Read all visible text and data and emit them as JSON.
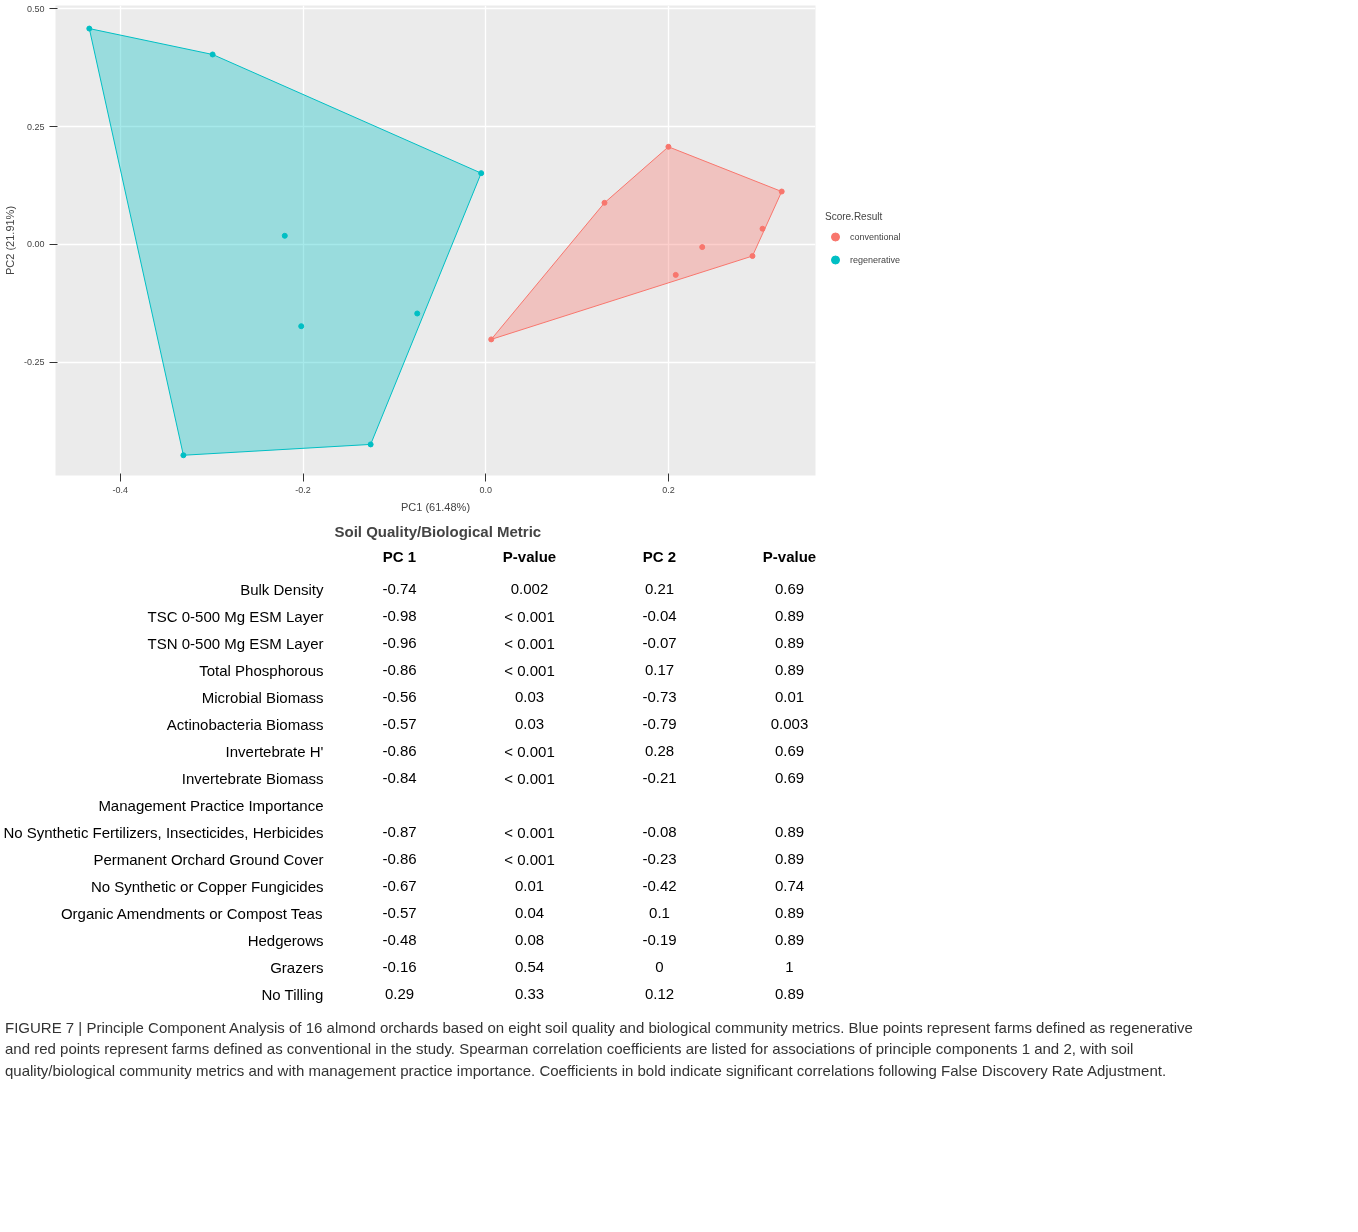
{
  "chart_data": [
    {
      "type": "scatter",
      "xlabel": "PC1 (61.48%)",
      "ylabel": "PC2 (21.91%)",
      "legend_title": "Score.Result",
      "legend": "right",
      "grid": true,
      "marker": "circle",
      "xlim": [
        -0.471,
        0.361
      ],
      "ylim": [
        -0.491,
        0.507
      ],
      "xticks": [
        {
          "value": -0.4,
          "label": "-0.4"
        },
        {
          "value": -0.2,
          "label": "-0.2"
        },
        {
          "value": 0.0,
          "label": "0.0"
        },
        {
          "value": 0.2,
          "label": "0.2"
        }
      ],
      "yticks": [
        {
          "value": -0.25,
          "label": "-0.25"
        },
        {
          "value": 0.0,
          "label": "0.00"
        },
        {
          "value": 0.25,
          "label": "0.25"
        },
        {
          "value": 0.5,
          "label": "0.50"
        }
      ],
      "series": [
        {
          "type": "area",
          "marker": "none",
          "color": "#f8766d",
          "x": [
            0.2,
            0.324,
            0.292,
            0.006,
            0.13
          ],
          "values": [
            0.207,
            0.112,
            -0.025,
            -0.202,
            0.088
          ]
        },
        {
          "type": "area",
          "marker": "none",
          "color": "#00bfc4",
          "x": [
            -0.434,
            -0.299,
            -0.005,
            -0.126,
            -0.331
          ],
          "values": [
            0.458,
            0.403,
            0.151,
            -0.425,
            -0.448
          ]
        },
        {
          "name": "conventional",
          "color": "#f8766d",
          "x": [
            0.2,
            0.324,
            0.303,
            0.292,
            0.237,
            0.208,
            0.13,
            0.006
          ],
          "values": [
            0.207,
            0.112,
            0.033,
            -0.025,
            -0.006,
            -0.065,
            0.088,
            -0.202
          ]
        },
        {
          "name": "regenerative",
          "color": "#00bfc4",
          "x": [
            -0.434,
            -0.299,
            -0.005,
            -0.22,
            -0.202,
            -0.075,
            -0.126,
            -0.331
          ],
          "values": [
            0.458,
            0.403,
            0.151,
            0.018,
            -0.174,
            -0.147,
            -0.425,
            -0.448
          ]
        }
      ]
    },
    {
      "type": "heatmap",
      "title": "Soil Quality/Biological Metric",
      "data_labels": true,
      "categories": [
        "PC 1",
        "P-value",
        "PC 2",
        "P-value"
      ],
      "y_categories": [
        "Bulk Density",
        "TSC 0-500 Mg ESM Layer",
        "TSN 0-500 Mg ESM Layer",
        "Total Phosphorous",
        "Microbial Biomass",
        "Actinobacteria Biomass",
        "Invertebrate H'",
        "Invertebrate Biomass",
        "Management Practice Importance",
        "No Synthetic Fertilizers, Insecticides, Herbicides",
        "Permanent Orchard Ground Cover",
        "No Synthetic or Copper Fungicides",
        "Organic Amendments or Compost Teas",
        "Hedgerows",
        "Grazers",
        "No Tilling"
      ],
      "cells": [
        [
          -0.74,
          0.002,
          0.21,
          0.69
        ],
        [
          -0.98,
          null,
          -0.04,
          0.89
        ],
        [
          -0.96,
          null,
          -0.07,
          0.89
        ],
        [
          -0.86,
          null,
          0.17,
          0.89
        ],
        [
          -0.56,
          0.03,
          -0.73,
          0.01
        ],
        [
          -0.57,
          0.03,
          -0.79,
          0.003
        ],
        [
          -0.86,
          null,
          0.28,
          0.69
        ],
        [
          -0.84,
          null,
          -0.21,
          0.69
        ],
        [
          null,
          null,
          null,
          null
        ],
        [
          -0.87,
          null,
          -0.08,
          0.89
        ],
        [
          -0.86,
          null,
          -0.23,
          0.89
        ],
        [
          -0.67,
          0.01,
          -0.42,
          0.74
        ],
        [
          -0.57,
          0.04,
          0.1,
          0.89
        ],
        [
          -0.48,
          0.08,
          -0.19,
          0.89
        ],
        [
          -0.16,
          0.54,
          0,
          1
        ],
        [
          0.29,
          0.33,
          0.12,
          0.89
        ]
      ],
      "cell_labels": [
        [
          "-0.74",
          "0.002",
          "0.21",
          "0.69"
        ],
        [
          "-0.98",
          "< 0.001",
          "-0.04",
          "0.89"
        ],
        [
          "-0.96",
          "< 0.001",
          "-0.07",
          "0.89"
        ],
        [
          "-0.86",
          "< 0.001",
          "0.17",
          "0.89"
        ],
        [
          "-0.56",
          "0.03",
          "-0.73",
          "0.01"
        ],
        [
          "-0.57",
          "0.03",
          "-0.79",
          "0.003"
        ],
        [
          "-0.86",
          "< 0.001",
          "0.28",
          "0.69"
        ],
        [
          "-0.84",
          "< 0.001",
          "-0.21",
          "0.69"
        ],
        [
          null,
          null,
          null,
          null
        ],
        [
          "-0.87",
          "< 0.001",
          "-0.08",
          "0.89"
        ],
        [
          "-0.86",
          "< 0.001",
          "-0.23",
          "0.89"
        ],
        [
          "-0.67",
          "0.01",
          "-0.42",
          "0.74"
        ],
        [
          "-0.57",
          "0.04",
          "0.1",
          "0.89"
        ],
        [
          "-0.48",
          "0.08",
          "-0.19",
          "0.89"
        ],
        [
          "-0.16",
          "0.54",
          "0",
          "1"
        ],
        [
          "0.29",
          "0.33",
          "0.12",
          "0.89"
        ]
      ],
      "annotations": [
        "FIGURE 7 | Principle Component Analysis of 16 almond orchards based on eight soil quality and biological community metrics. Blue points represent farms defined as regenerative and red points represent farms defined as conventional in the study. Spearman correlation coefficients are listed for associations of principle components 1 and 2, with soil quality/biological community metrics and with management practice importance. Coefficients in bold indicate significant correlations following False Discovery Rate Adjustment."
      ]
    }
  ]
}
